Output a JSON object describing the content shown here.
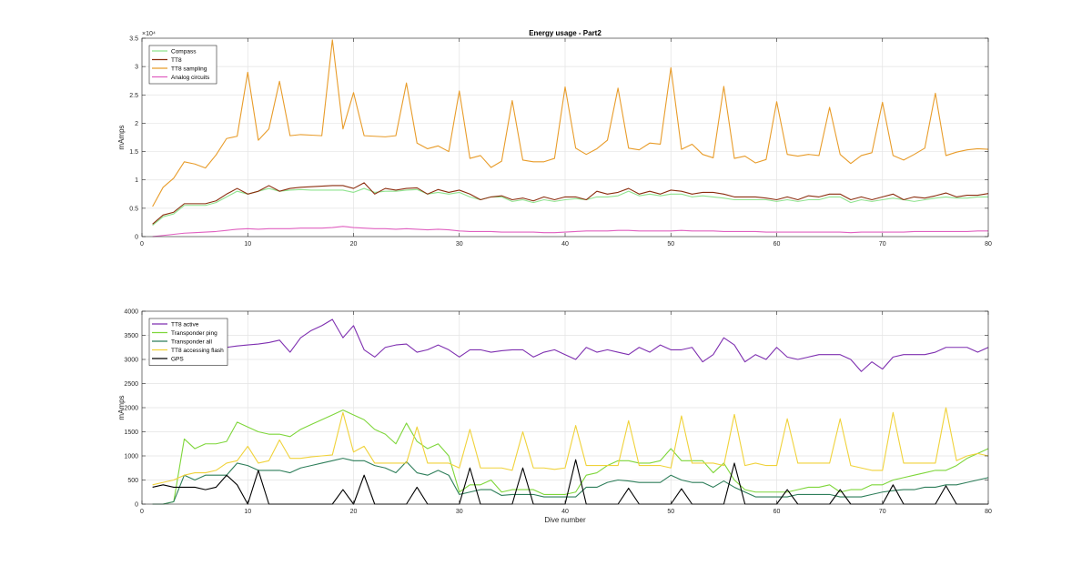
{
  "chart_data": [
    {
      "type": "line",
      "title": "Energy usage - Part2",
      "xlabel": "",
      "ylabel": "mAmps",
      "xlim": [
        0,
        80
      ],
      "ylim": [
        0,
        35000
      ],
      "exponent_label": "×10⁴",
      "ytick_values": [
        0,
        5000,
        10000,
        15000,
        20000,
        25000,
        30000,
        35000
      ],
      "yticks": [
        "0",
        "0.5",
        "1",
        "1.5",
        "2",
        "2.5",
        "3",
        "3.5"
      ],
      "xticks": [
        "0",
        "10",
        "20",
        "30",
        "40",
        "50",
        "60",
        "70",
        "80"
      ],
      "grid": true,
      "legend_position": "top-left",
      "series": [
        {
          "name": "Compass",
          "color": "#8fe38f",
          "x_start": 1,
          "values": [
            2000,
            3500,
            4000,
            5500,
            5500,
            5500,
            6000,
            7000,
            8000,
            7500,
            8000,
            8500,
            8000,
            8200,
            8300,
            8200,
            8200,
            8200,
            8200,
            7800,
            8500,
            7800,
            8000,
            8000,
            8200,
            8300,
            7500,
            7800,
            7500,
            7800,
            7000,
            6500,
            7000,
            7000,
            6200,
            6500,
            6000,
            6500,
            6200,
            6500,
            6700,
            6500,
            7000,
            7000,
            7200,
            8000,
            7200,
            7500,
            7200,
            7500,
            7500,
            7000,
            7200,
            7000,
            6800,
            6500,
            6500,
            6500,
            6500,
            6200,
            6500,
            6200,
            6500,
            6500,
            7000,
            7000,
            6000,
            6500,
            6200,
            6500,
            6800,
            6500,
            6200,
            6500,
            6800,
            7000,
            6800,
            6800,
            7000,
            7000
          ]
        },
        {
          "name": "TT8",
          "color": "#8b2e0f",
          "x_start": 1,
          "values": [
            2200,
            3800,
            4300,
            5800,
            5800,
            5800,
            6300,
            7500,
            8500,
            7500,
            8000,
            9000,
            8000,
            8500,
            8700,
            8800,
            8900,
            9000,
            9000,
            8500,
            9500,
            7500,
            8500,
            8200,
            8500,
            8600,
            7500,
            8300,
            7800,
            8200,
            7500,
            6500,
            7000,
            7200,
            6500,
            6800,
            6300,
            7000,
            6500,
            7000,
            7000,
            6500,
            8000,
            7500,
            7800,
            8500,
            7500,
            8000,
            7500,
            8200,
            8000,
            7500,
            7800,
            7800,
            7500,
            7000,
            7000,
            7000,
            6800,
            6500,
            7000,
            6500,
            7200,
            7000,
            7500,
            7500,
            6500,
            7000,
            6500,
            7000,
            7500,
            6500,
            7000,
            6800,
            7200,
            7700,
            7000,
            7300,
            7300,
            7600
          ]
        },
        {
          "name": "TT8 sampling",
          "color": "#e89c2a",
          "x_start": 1,
          "values": [
            5300,
            8700,
            10300,
            13200,
            12800,
            12100,
            14400,
            17300,
            17700,
            29000,
            17000,
            19000,
            27400,
            17800,
            18000,
            17900,
            17800,
            34700,
            19000,
            25400,
            17800,
            17700,
            17600,
            17800,
            27100,
            16500,
            15500,
            16000,
            15000,
            25700,
            13800,
            14300,
            12200,
            13300,
            24000,
            13500,
            13200,
            13200,
            13800,
            26400,
            15600,
            14500,
            15500,
            17000,
            26200,
            15600,
            15300,
            16500,
            16300,
            29800,
            15400,
            16300,
            14500,
            13900,
            26500,
            13800,
            14200,
            13000,
            13600,
            23800,
            14500,
            14200,
            14500,
            14300,
            22800,
            14500,
            12900,
            14300,
            14800,
            23700,
            14300,
            13500,
            14500,
            15600,
            25300,
            14300,
            14900,
            15300,
            15500,
            15400
          ]
        },
        {
          "name": "Analog circuits",
          "color": "#e060c0",
          "x_start": 1,
          "values": [
            0,
            200,
            400,
            600,
            700,
            800,
            900,
            1100,
            1300,
            1400,
            1300,
            1400,
            1400,
            1400,
            1500,
            1500,
            1500,
            1600,
            1800,
            1600,
            1500,
            1400,
            1400,
            1300,
            1400,
            1300,
            1200,
            1300,
            1200,
            1000,
            900,
            900,
            900,
            800,
            800,
            800,
            800,
            700,
            700,
            800,
            900,
            1000,
            1000,
            1000,
            1100,
            1100,
            1000,
            1000,
            1000,
            1000,
            1100,
            1000,
            1000,
            1000,
            900,
            900,
            900,
            900,
            800,
            800,
            800,
            800,
            800,
            800,
            800,
            800,
            700,
            800,
            800,
            800,
            800,
            800,
            900,
            900,
            900,
            900,
            900,
            900,
            1000,
            1000
          ]
        }
      ]
    },
    {
      "type": "line",
      "title": "",
      "xlabel": "Dive number",
      "ylabel": "mAmps",
      "xlim": [
        0,
        80
      ],
      "ylim": [
        0,
        4000
      ],
      "yticks": [
        "0",
        "500",
        "1000",
        "1500",
        "2000",
        "2500",
        "3000",
        "3500",
        "4000"
      ],
      "xticks": [
        "0",
        "10",
        "20",
        "30",
        "40",
        "50",
        "60",
        "70",
        "80"
      ],
      "grid": true,
      "legend_position": "top-left",
      "series": [
        {
          "name": "TT8 active",
          "color": "#7e2fb0",
          "x_start": 1,
          "values": [
            3000,
            3050,
            3100,
            3150,
            3200,
            3200,
            3250,
            3250,
            3280,
            3300,
            3320,
            3350,
            3400,
            3150,
            3450,
            3600,
            3700,
            3830,
            3450,
            3700,
            3200,
            3050,
            3250,
            3300,
            3320,
            3150,
            3200,
            3300,
            3200,
            3050,
            3200,
            3200,
            3150,
            3180,
            3200,
            3200,
            3050,
            3150,
            3200,
            3100,
            3000,
            3250,
            3150,
            3200,
            3150,
            3100,
            3250,
            3150,
            3300,
            3200,
            3200,
            3250,
            2950,
            3100,
            3450,
            3300,
            2950,
            3100,
            3000,
            3250,
            3050,
            3000,
            3050,
            3100,
            3100,
            3100,
            3000,
            2750,
            2950,
            2800,
            3050,
            3100,
            3100,
            3100,
            3150,
            3250,
            3250,
            3250,
            3150,
            3250
          ]
        },
        {
          "name": "Transponder ping",
          "color": "#7ed63a",
          "x_start": 1,
          "values": [
            0,
            0,
            50,
            1350,
            1150,
            1250,
            1250,
            1300,
            1700,
            1600,
            1500,
            1450,
            1450,
            1400,
            1550,
            1650,
            1750,
            1850,
            1950,
            1850,
            1750,
            1550,
            1450,
            1250,
            1680,
            1300,
            1150,
            1250,
            1000,
            250,
            400,
            400,
            500,
            250,
            300,
            300,
            300,
            200,
            200,
            200,
            250,
            600,
            650,
            800,
            900,
            900,
            850,
            850,
            900,
            1150,
            900,
            900,
            900,
            650,
            850,
            500,
            300,
            250,
            250,
            250,
            250,
            300,
            350,
            350,
            400,
            250,
            300,
            300,
            400,
            400,
            500,
            550,
            600,
            650,
            700,
            700,
            800,
            950,
            1050,
            1150
          ]
        },
        {
          "name": "Transponder all",
          "color": "#2e7e5a",
          "x_start": 1,
          "values": [
            0,
            0,
            50,
            600,
            500,
            600,
            600,
            600,
            850,
            800,
            700,
            700,
            700,
            650,
            750,
            800,
            850,
            900,
            950,
            900,
            900,
            800,
            750,
            650,
            880,
            650,
            600,
            700,
            600,
            200,
            250,
            300,
            300,
            180,
            200,
            200,
            200,
            150,
            150,
            150,
            150,
            350,
            350,
            450,
            500,
            480,
            450,
            450,
            450,
            600,
            500,
            450,
            450,
            350,
            480,
            350,
            250,
            150,
            150,
            150,
            150,
            200,
            200,
            200,
            200,
            150,
            150,
            150,
            200,
            250,
            280,
            300,
            300,
            350,
            350,
            400,
            400,
            450,
            500,
            550
          ]
        },
        {
          "name": "TT8 accessing flash",
          "color": "#f0d23a",
          "x_start": 1,
          "values": [
            400,
            450,
            500,
            600,
            650,
            650,
            700,
            850,
            900,
            1200,
            850,
            900,
            1330,
            950,
            950,
            980,
            1000,
            1020,
            1900,
            1080,
            1200,
            850,
            850,
            850,
            850,
            1600,
            850,
            850,
            850,
            750,
            1550,
            750,
            750,
            750,
            700,
            1500,
            750,
            750,
            720,
            750,
            1630,
            800,
            800,
            800,
            800,
            1730,
            800,
            800,
            800,
            750,
            1830,
            850,
            850,
            850,
            800,
            1860,
            800,
            850,
            800,
            800,
            1770,
            850,
            850,
            850,
            850,
            1770,
            800,
            750,
            700,
            700,
            1900,
            850,
            850,
            850,
            850,
            2000,
            900,
            1000,
            1050,
            1000
          ]
        },
        {
          "name": "GPS",
          "color": "#000000",
          "x_start": 1,
          "values": [
            350,
            400,
            350,
            350,
            350,
            300,
            350,
            600,
            400,
            0,
            700,
            0,
            0,
            0,
            0,
            0,
            0,
            0,
            300,
            0,
            600,
            0,
            0,
            0,
            0,
            350,
            0,
            0,
            0,
            0,
            750,
            0,
            0,
            0,
            0,
            750,
            0,
            0,
            0,
            0,
            920,
            0,
            0,
            0,
            0,
            330,
            0,
            0,
            0,
            0,
            320,
            0,
            0,
            0,
            0,
            850,
            0,
            0,
            0,
            0,
            300,
            0,
            0,
            0,
            0,
            300,
            0,
            0,
            0,
            0,
            400,
            0,
            0,
            0,
            0,
            380,
            0,
            0,
            0,
            0
          ]
        }
      ]
    }
  ]
}
